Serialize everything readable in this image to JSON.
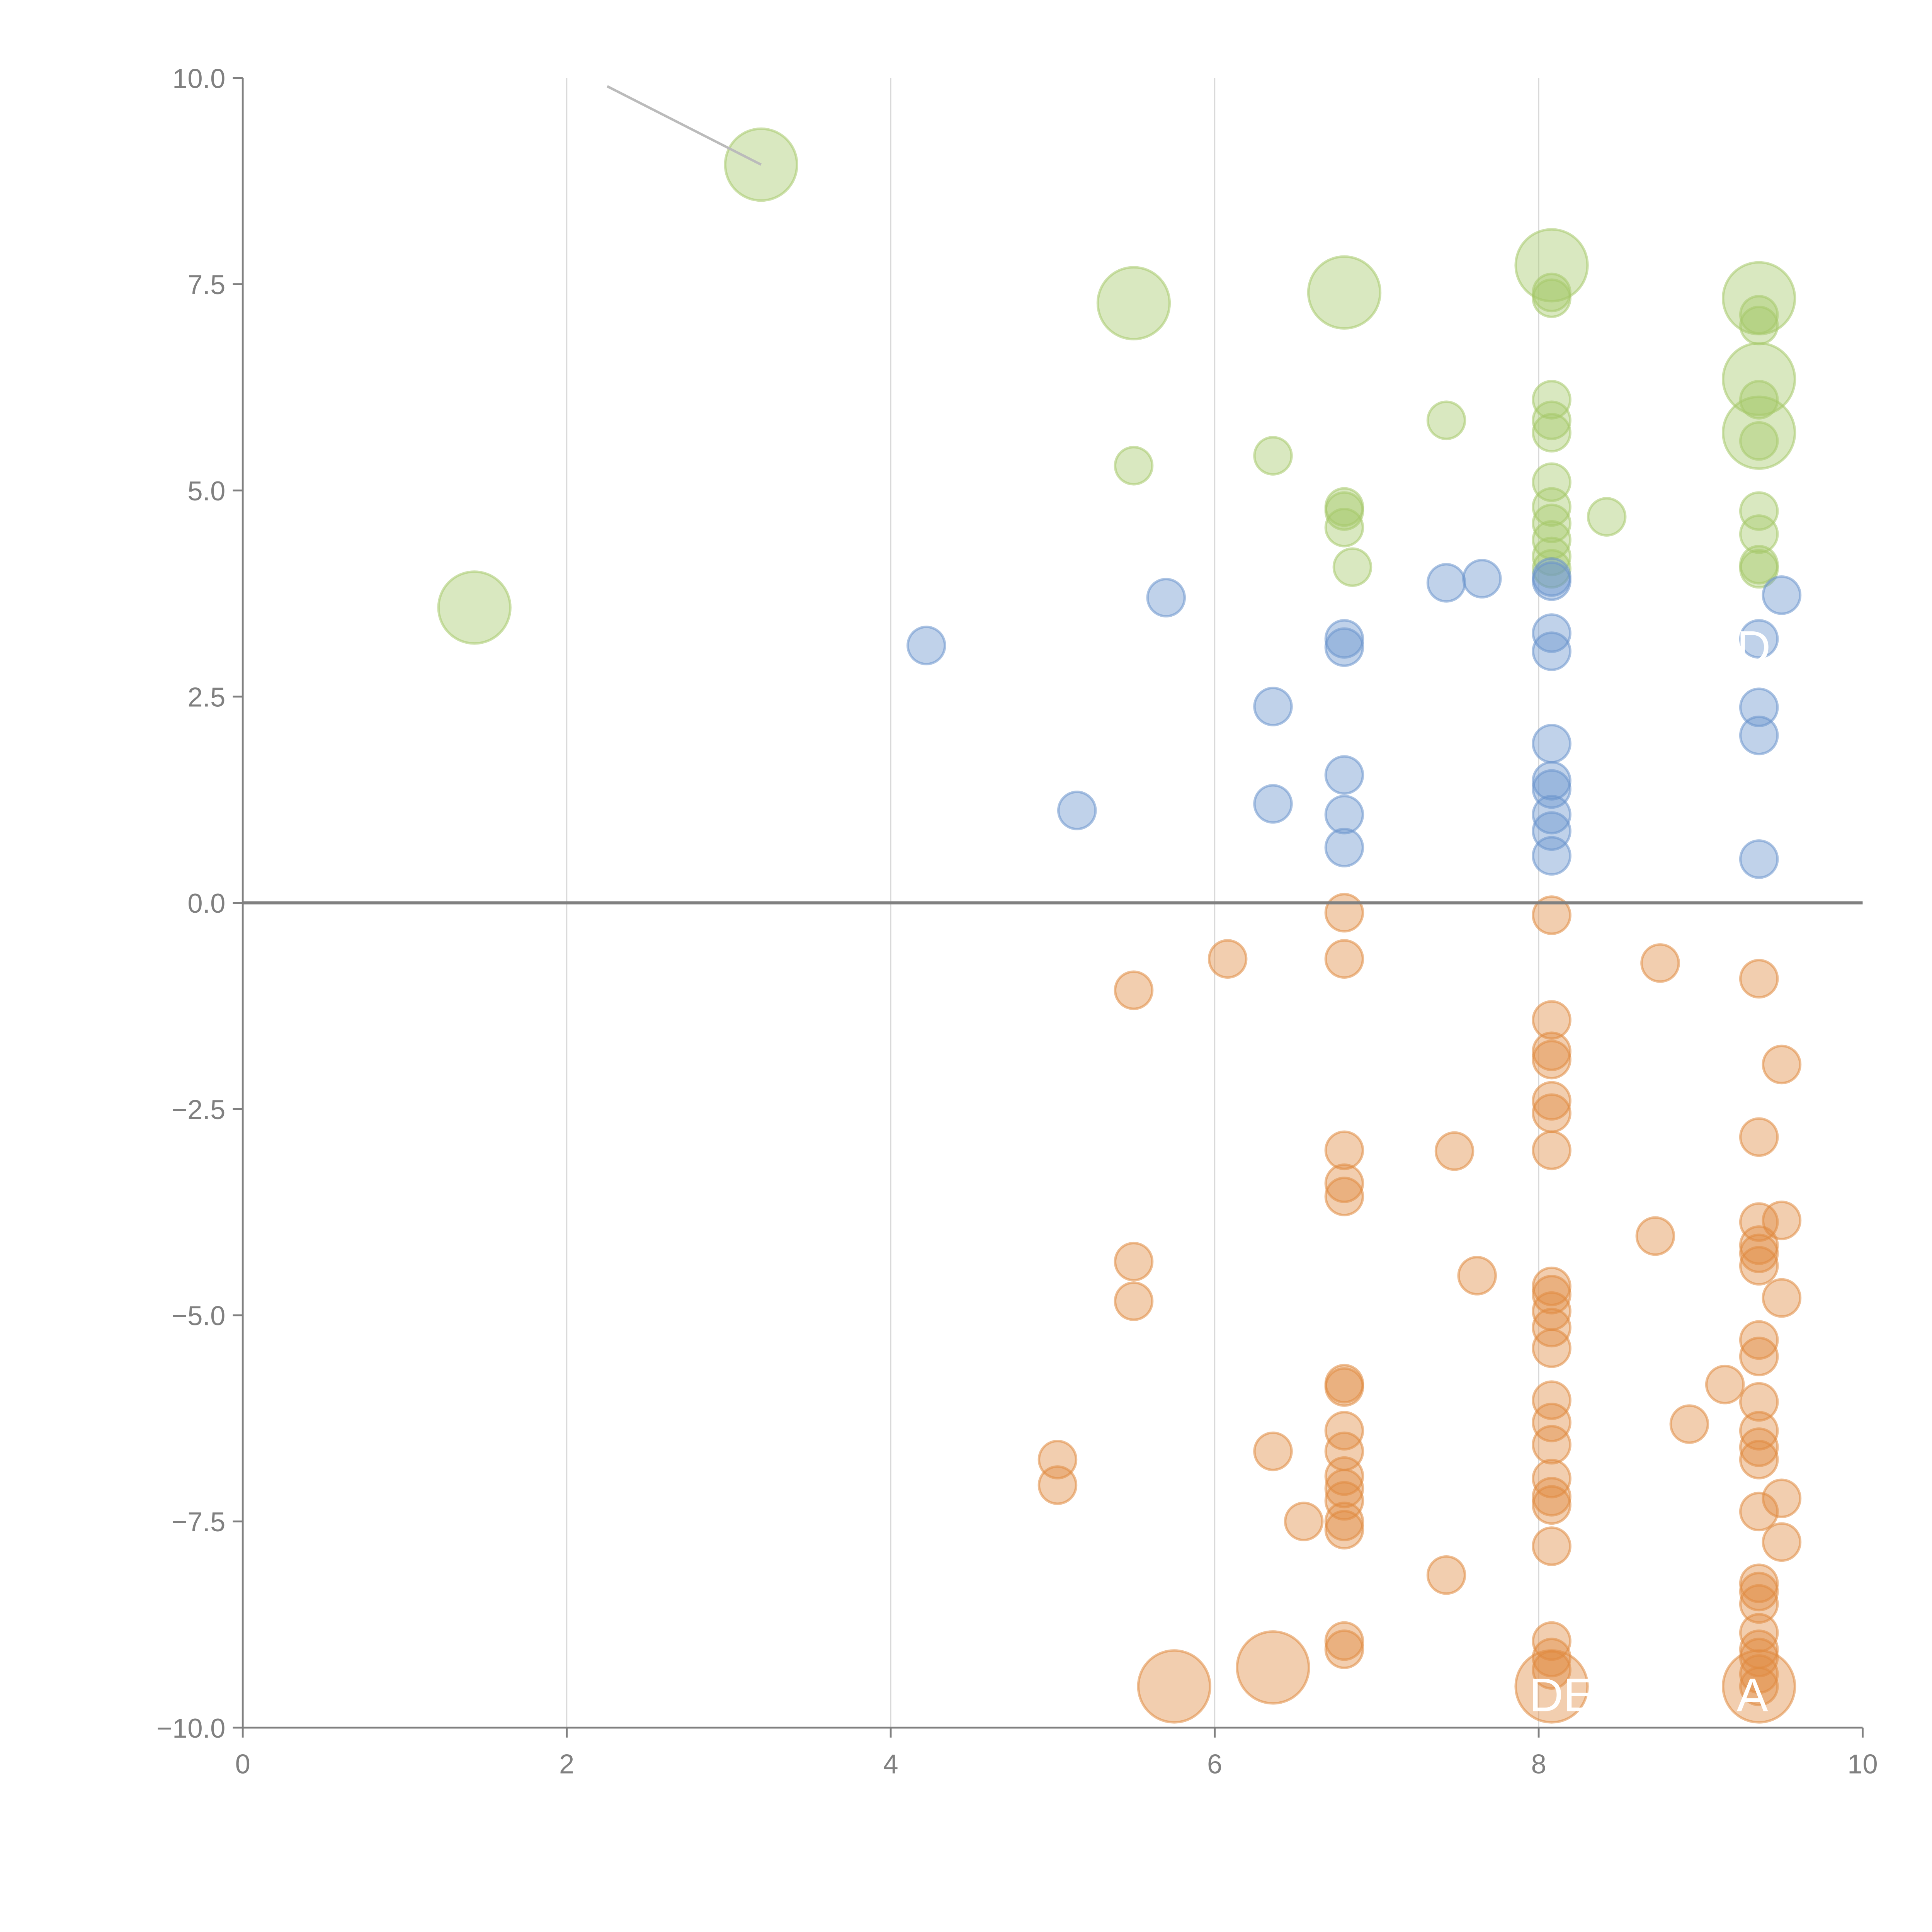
{
  "chart_data": {
    "type": "scatter",
    "title": "",
    "xlabel": "",
    "ylabel": "",
    "xlim": [
      0,
      10
    ],
    "ylim": [
      -10,
      10
    ],
    "x_ticks": [
      "0",
      "2",
      "4",
      "6",
      "8",
      "10"
    ],
    "y_ticks": [
      "10.0",
      "7.5",
      "5.0",
      "2.5",
      "0.0",
      "−2.5",
      "−5.0",
      "−7.5",
      "−10.0"
    ],
    "x_tick_values": [
      0,
      2,
      4,
      6,
      8,
      10
    ],
    "y_tick_values": [
      10,
      7.5,
      5,
      2.5,
      0,
      -2.5,
      -5,
      -7.5,
      -10
    ],
    "grid": "vertical",
    "zero_line": true,
    "colors": {
      "green": "#a5c86a",
      "blue": "#6a93cc",
      "orange": "#e08a40",
      "axis": "#808080",
      "grid": "#d9d9d9"
    },
    "series": [
      {
        "name": "green",
        "points": [
          [
            3.2,
            8.95,
            2
          ],
          [
            5.5,
            7.27,
            2
          ],
          [
            6.8,
            7.4,
            2
          ],
          [
            8.08,
            7.73,
            2
          ],
          [
            8.08,
            7.4,
            1
          ],
          [
            8.08,
            7.33,
            1
          ],
          [
            9.36,
            7.33,
            2
          ],
          [
            9.36,
            7.13,
            1
          ],
          [
            9.36,
            7.0,
            1
          ],
          [
            9.36,
            6.35,
            2
          ],
          [
            9.36,
            6.1,
            1
          ],
          [
            9.36,
            5.7,
            2
          ],
          [
            9.36,
            5.6,
            1
          ],
          [
            7.43,
            5.85,
            1
          ],
          [
            8.08,
            6.1,
            1
          ],
          [
            8.08,
            5.85,
            1
          ],
          [
            8.08,
            5.7,
            1
          ],
          [
            5.5,
            5.3,
            1
          ],
          [
            6.36,
            5.42,
            1
          ],
          [
            6.8,
            4.8,
            1
          ],
          [
            6.8,
            4.75,
            1
          ],
          [
            6.8,
            4.55,
            1
          ],
          [
            8.08,
            5.1,
            1
          ],
          [
            8.08,
            4.8,
            1
          ],
          [
            8.08,
            4.6,
            1
          ],
          [
            8.08,
            4.4,
            1
          ],
          [
            8.08,
            4.2,
            1
          ],
          [
            8.08,
            4.05,
            1
          ],
          [
            8.42,
            4.68,
            1
          ],
          [
            9.36,
            4.75,
            1
          ],
          [
            9.36,
            4.47,
            1
          ],
          [
            9.36,
            4.1,
            1
          ],
          [
            9.36,
            4.05,
            1
          ],
          [
            6.85,
            4.07,
            1
          ],
          [
            1.43,
            3.58,
            2
          ]
        ]
      },
      {
        "name": "blue",
        "points": [
          [
            4.22,
            3.12,
            1
          ],
          [
            5.7,
            3.7,
            1
          ],
          [
            5.15,
            1.12,
            1
          ],
          [
            6.36,
            2.38,
            1
          ],
          [
            6.36,
            1.2,
            1
          ],
          [
            6.8,
            3.2,
            1
          ],
          [
            6.8,
            3.1,
            1
          ],
          [
            6.8,
            1.55,
            1
          ],
          [
            6.8,
            1.07,
            1
          ],
          [
            6.8,
            0.67,
            1
          ],
          [
            7.43,
            3.88,
            1
          ],
          [
            7.65,
            3.93,
            1
          ],
          [
            8.08,
            3.9,
            1
          ],
          [
            8.08,
            3.95,
            1
          ],
          [
            8.08,
            3.27,
            1
          ],
          [
            8.08,
            3.05,
            1
          ],
          [
            8.08,
            1.93,
            1
          ],
          [
            8.08,
            1.48,
            1
          ],
          [
            8.08,
            1.38,
            1
          ],
          [
            8.08,
            1.07,
            1
          ],
          [
            8.08,
            0.87,
            1
          ],
          [
            8.08,
            0.57,
            1
          ],
          [
            9.36,
            3.2,
            1
          ],
          [
            9.36,
            2.37,
            1
          ],
          [
            9.36,
            2.03,
            1
          ],
          [
            9.36,
            0.53,
            1
          ],
          [
            9.5,
            3.73,
            1
          ]
        ]
      },
      {
        "name": "orange",
        "points": [
          [
            6.8,
            -0.12,
            1
          ],
          [
            6.8,
            -0.68,
            1
          ],
          [
            6.08,
            -0.68,
            1
          ],
          [
            5.5,
            -1.06,
            1
          ],
          [
            8.08,
            -0.15,
            1
          ],
          [
            8.75,
            -0.73,
            1
          ],
          [
            9.36,
            -0.92,
            1
          ],
          [
            8.08,
            -1.42,
            1
          ],
          [
            8.08,
            -1.8,
            1
          ],
          [
            8.08,
            -1.9,
            1
          ],
          [
            9.5,
            -1.96,
            1
          ],
          [
            9.36,
            -2.84,
            1
          ],
          [
            8.08,
            -2.4,
            1
          ],
          [
            8.08,
            -2.55,
            1
          ],
          [
            8.08,
            -3.0,
            1
          ],
          [
            6.8,
            -3.0,
            1
          ],
          [
            6.8,
            -3.4,
            1
          ],
          [
            6.8,
            -3.56,
            1
          ],
          [
            7.48,
            -3.01,
            1
          ],
          [
            8.72,
            -4.04,
            1
          ],
          [
            9.36,
            -3.87,
            1
          ],
          [
            9.5,
            -3.85,
            1
          ],
          [
            9.36,
            -4.15,
            1
          ],
          [
            9.36,
            -4.4,
            1
          ],
          [
            9.36,
            -4.25,
            1
          ],
          [
            5.5,
            -4.35,
            1
          ],
          [
            5.5,
            -4.83,
            1
          ],
          [
            7.62,
            -4.52,
            1
          ],
          [
            8.08,
            -4.65,
            1
          ],
          [
            8.08,
            -4.75,
            1
          ],
          [
            8.08,
            -4.95,
            1
          ],
          [
            8.08,
            -5.15,
            1
          ],
          [
            8.08,
            -5.4,
            1
          ],
          [
            9.5,
            -4.79,
            1
          ],
          [
            9.36,
            -5.3,
            1
          ],
          [
            9.36,
            -5.5,
            1
          ],
          [
            9.15,
            -5.84,
            1
          ],
          [
            6.8,
            -5.83,
            1
          ],
          [
            6.8,
            -5.87,
            1
          ],
          [
            8.08,
            -6.03,
            1
          ],
          [
            8.08,
            -6.3,
            1
          ],
          [
            8.08,
            -6.57,
            1
          ],
          [
            9.36,
            -6.05,
            1
          ],
          [
            9.36,
            -6.4,
            1
          ],
          [
            9.36,
            -6.6,
            1
          ],
          [
            9.36,
            -6.75,
            1
          ],
          [
            8.93,
            -6.32,
            1
          ],
          [
            6.8,
            -6.4,
            1
          ],
          [
            6.8,
            -6.65,
            1
          ],
          [
            6.8,
            -6.95,
            1
          ],
          [
            6.8,
            -7.1,
            1
          ],
          [
            6.8,
            -7.25,
            1
          ],
          [
            6.8,
            -7.5,
            1
          ],
          [
            6.8,
            -7.6,
            1
          ],
          [
            6.36,
            -6.65,
            1
          ],
          [
            5.03,
            -6.75,
            1
          ],
          [
            5.03,
            -7.06,
            1
          ],
          [
            6.55,
            -7.5,
            1
          ],
          [
            8.08,
            -6.98,
            1
          ],
          [
            8.08,
            -7.2,
            1
          ],
          [
            8.08,
            -7.3,
            1
          ],
          [
            8.08,
            -7.8,
            1
          ],
          [
            9.36,
            -7.38,
            1
          ],
          [
            9.5,
            -7.22,
            1
          ],
          [
            9.5,
            -7.75,
            1
          ],
          [
            7.43,
            -8.15,
            1
          ],
          [
            9.36,
            -8.25,
            1
          ],
          [
            9.36,
            -8.35,
            1
          ],
          [
            9.36,
            -8.5,
            1
          ],
          [
            9.36,
            -8.85,
            1
          ],
          [
            9.36,
            -9.05,
            1
          ],
          [
            9.36,
            -9.15,
            1
          ],
          [
            9.36,
            -9.35,
            1
          ],
          [
            9.36,
            -9.5,
            1
          ],
          [
            8.08,
            -8.95,
            1
          ],
          [
            8.08,
            -9.15,
            1
          ],
          [
            8.08,
            -9.3,
            1
          ],
          [
            6.8,
            -8.95,
            1
          ],
          [
            6.8,
            -9.05,
            1
          ],
          [
            5.75,
            -9.5,
            2
          ],
          [
            6.36,
            -9.27,
            2
          ],
          [
            8.08,
            -9.5,
            2
          ],
          [
            9.36,
            -9.5,
            2
          ]
        ]
      }
    ],
    "annotations": [
      {
        "text": "DE",
        "x": 8.08,
        "y": -9.5
      },
      {
        "text": "A",
        "x": 9.36,
        "y": -9.5
      },
      {
        "text": "D",
        "x": 9.36,
        "y": 3.2
      }
    ],
    "leader_lines": [
      [
        2.25,
        9.9,
        3.2,
        8.95
      ]
    ]
  }
}
